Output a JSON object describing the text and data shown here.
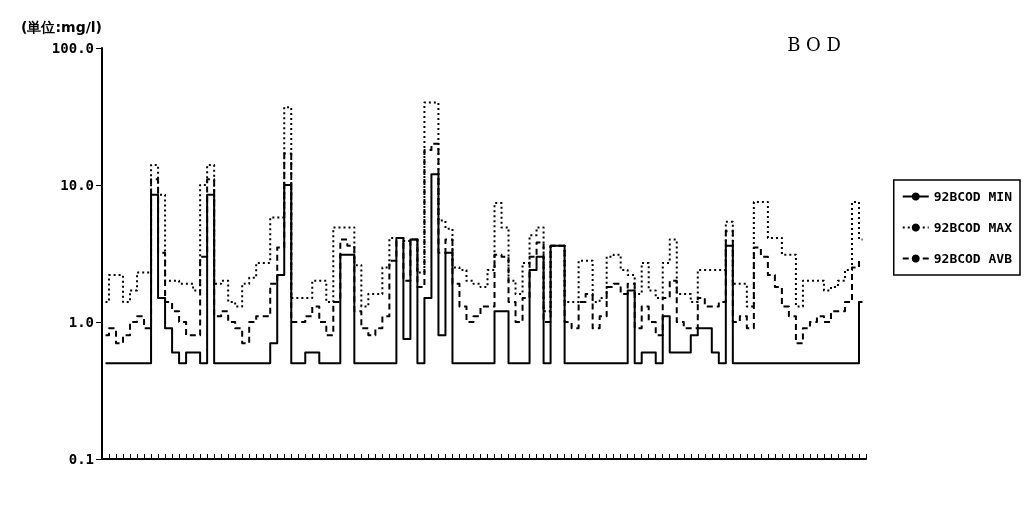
{
  "chart_data": {
    "type": "step",
    "title": "B O D",
    "ylabel": "(単位:mg/l)",
    "categories": [
      null,
      null,
      null,
      null,
      null,
      null,
      null,
      null,
      null,
      null,
      null,
      null,
      null,
      null,
      null,
      null,
      null,
      null,
      null,
      null,
      null,
      null,
      null,
      null,
      null,
      null,
      null,
      null,
      null,
      null,
      null,
      null,
      null,
      null,
      null,
      null,
      null,
      null,
      null,
      null,
      null,
      null,
      null,
      null,
      null,
      null,
      null,
      null,
      null,
      null,
      null,
      null,
      null,
      null,
      null,
      null,
      null,
      null,
      null,
      null,
      null,
      null,
      null,
      null,
      null,
      null,
      null,
      null,
      null,
      null,
      null,
      null,
      null,
      null,
      null,
      null,
      null,
      null,
      null,
      null,
      null,
      null,
      null,
      null,
      null,
      null,
      null,
      null,
      null,
      null,
      null,
      null,
      null,
      null,
      null,
      null,
      null,
      null,
      null,
      null,
      null,
      null,
      null,
      null,
      null,
      null,
      null,
      null,
      null
    ],
    "series": [
      {
        "name": "92BCOD MIN",
        "color": "#000000",
        "line_style": "solid",
        "values": [
          0.5,
          0.5,
          0.5,
          0.5,
          0.5,
          0.5,
          0.5,
          8.5,
          1.5,
          0.9,
          0.6,
          0.5,
          0.6,
          0.6,
          0.5,
          8.5,
          0.5,
          0.5,
          0.5,
          0.5,
          0.5,
          0.5,
          0.5,
          0.5,
          0.7,
          2.2,
          10,
          0.5,
          0.5,
          0.6,
          0.6,
          0.5,
          0.5,
          0.5,
          3.1,
          3.1,
          0.5,
          0.5,
          0.5,
          0.5,
          0.5,
          0.5,
          4.1,
          0.75,
          4,
          0.5,
          1.5,
          12,
          0.8,
          3.2,
          0.5,
          0.5,
          0.5,
          0.5,
          0.5,
          0.5,
          1.2,
          1.2,
          0.5,
          0.5,
          0.5,
          2.4,
          3,
          0.5,
          3.6,
          3.6,
          0.5,
          0.5,
          0.5,
          0.5,
          0.5,
          0.5,
          0.5,
          0.5,
          0.5,
          1.7,
          0.5,
          0.6,
          0.6,
          0.5,
          1.1,
          0.6,
          0.6,
          0.6,
          0.8,
          0.9,
          0.9,
          0.6,
          0.5,
          3.6,
          0.5,
          0.5,
          0.5,
          0.5,
          0.5,
          0.5,
          0.5,
          0.5,
          0.5,
          0.5,
          0.5,
          0.5,
          0.5,
          0.5,
          0.5,
          0.5,
          0.5,
          0.5,
          1.4
        ]
      },
      {
        "name": "92BCOD MAX",
        "color": "#000000",
        "line_style": "dotted",
        "values": [
          1.4,
          2.2,
          2.2,
          1.4,
          1.7,
          2.3,
          2.3,
          14,
          8.5,
          2,
          2,
          1.9,
          1.9,
          1.7,
          10,
          14,
          1.9,
          2,
          1.4,
          1.3,
          1.9,
          2.1,
          2.7,
          2.7,
          5.8,
          5.8,
          37,
          1.5,
          1.5,
          1.5,
          2,
          2,
          1.4,
          4.9,
          4.9,
          4.9,
          2.6,
          1.3,
          1.6,
          1.6,
          2.5,
          4.1,
          4.1,
          3.9,
          4,
          2.3,
          40,
          40,
          5.5,
          4.8,
          2.5,
          2.4,
          2,
          1.9,
          1.8,
          2.4,
          7.4,
          4.9,
          2,
          1.6,
          2.7,
          4.3,
          4.9,
          1.2,
          3.6,
          3.6,
          1.4,
          1.4,
          2.8,
          2.8,
          1.4,
          1.5,
          3,
          3.1,
          2.4,
          2.2,
          1.6,
          2.7,
          1.7,
          1.5,
          2.7,
          4,
          1.6,
          1.6,
          1.4,
          2.4,
          2.4,
          2.4,
          2.4,
          5.4,
          1.9,
          1.9,
          1.3,
          7.5,
          7.5,
          4.1,
          4.1,
          3.1,
          3.1,
          1.3,
          2,
          2,
          2,
          1.7,
          1.8,
          2,
          2.4,
          7.5,
          4
        ]
      },
      {
        "name": "92BCOD AVB",
        "color": "#000000",
        "line_style": "dashed",
        "values": [
          0.8,
          0.9,
          0.7,
          0.8,
          1,
          1.1,
          0.9,
          11,
          3.2,
          1.4,
          1.2,
          1,
          0.8,
          0.8,
          3,
          11,
          1.1,
          1.2,
          1,
          0.9,
          0.7,
          1,
          1.1,
          1.1,
          1.9,
          3.5,
          17,
          1,
          1,
          1.1,
          1.3,
          1,
          0.8,
          1.4,
          4,
          3.6,
          1.2,
          0.9,
          0.8,
          0.9,
          1.1,
          2.8,
          4.1,
          2,
          4,
          1.8,
          18,
          20,
          3.2,
          4,
          1.9,
          1.3,
          1,
          1.1,
          1.3,
          1.3,
          3.1,
          3,
          1.4,
          1,
          1.5,
          3,
          3.8,
          1,
          3.6,
          3.6,
          1,
          0.9,
          1.4,
          1.6,
          0.9,
          1.1,
          1.8,
          1.9,
          1.6,
          1.9,
          0.9,
          1.3,
          1,
          0.8,
          1.5,
          2,
          1,
          0.9,
          0.9,
          1.5,
          1.3,
          1.3,
          1.4,
          4.6,
          1,
          1.1,
          0.9,
          3.5,
          3,
          2.2,
          1.8,
          1.3,
          1.1,
          0.7,
          0.9,
          1,
          1.1,
          1,
          1.2,
          1.2,
          1.4,
          2.5,
          2.8
        ]
      }
    ],
    "log": true,
    "ylim": [
      0.1,
      100
    ],
    "yticks": [
      {
        "value": 0.1,
        "label": "0.1"
      },
      {
        "value": 1,
        "label": "1.0"
      },
      {
        "value": 10,
        "label": "10.0"
      },
      {
        "value": 100,
        "label": "100.0"
      }
    ],
    "grid": false,
    "legend": "right",
    "marker": "none"
  }
}
